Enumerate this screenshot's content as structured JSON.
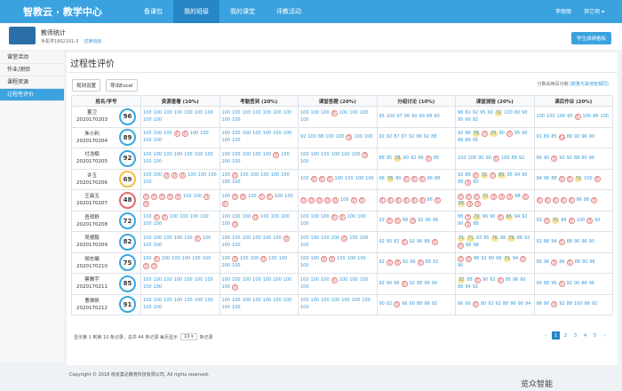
{
  "header": {
    "logo": "智教云 · 教学中心",
    "nav": [
      "备课包",
      "我的班级",
      "我的课堂",
      "评教活动"
    ],
    "active_nav": 1,
    "user": "李丽丽",
    "menu": "其它项"
  },
  "course": {
    "title": "教师统计",
    "class": "手机学1802101-3",
    "switch": "切换班级",
    "button": "学生成绩看板"
  },
  "sidebar": {
    "items": [
      "课堂活动",
      "作业/测验",
      "课程资源",
      "过程性评价"
    ],
    "active": 3
  },
  "page": {
    "title": "过程性评价",
    "buttons": [
      "规则设置",
      "导出Excel"
    ],
    "note": "分数采用百分制",
    "note_link": "(数量与其他班相同)"
  },
  "table": {
    "columns": [
      "姓名/学号",
      "资源查看 (10%)",
      "考勤签到 (20%)",
      "课堂答题 (20%)",
      "分组讨论 (10%)",
      "课堂测验 (20%)",
      "课后作业 (20%)"
    ],
    "rows": [
      {
        "name": "董卫",
        "id": "2020170203",
        "total": 96,
        "scores": [
          [
            100,
            100,
            100,
            100,
            100,
            100,
            100,
            100,
            100
          ],
          [
            100,
            100,
            100,
            100,
            100,
            100,
            100,
            100,
            100
          ],
          [
            100,
            100,
            100,
            0,
            100,
            100,
            100,
            100
          ],
          [
            95,
            100,
            97,
            96,
            90,
            90,
            88,
            90
          ],
          [
            98,
            82,
            92,
            95,
            90,
            72,
            100,
            80,
            90,
            95,
            90,
            92
          ],
          [
            100,
            100,
            100,
            95,
            0,
            100,
            88,
            100
          ]
        ]
      },
      {
        "name": "朱小利",
        "id": "2020170204",
        "total": 89,
        "scores": [
          [
            100,
            100,
            100,
            0,
            0,
            100,
            100,
            100,
            100
          ],
          [
            100,
            100,
            100,
            100,
            100,
            100,
            100,
            100,
            100
          ],
          [
            92,
            100,
            88,
            100,
            100,
            0,
            100,
            100
          ],
          [
            92,
            92,
            87,
            87,
            92,
            96,
            92,
            88
          ],
          [
            92,
            96,
            78,
            0,
            75,
            90,
            0,
            95,
            90,
            88,
            86,
            95
          ],
          [
            91,
            89,
            85,
            52,
            88,
            92,
            96,
            90
          ]
        ]
      },
      {
        "name": "付浩楠",
        "id": "2020170205",
        "total": 92,
        "scores": [
          [
            100,
            100,
            100,
            100,
            100,
            100,
            100,
            100,
            100
          ],
          [
            100,
            100,
            100,
            100,
            100,
            0,
            100,
            100,
            100
          ],
          [
            100,
            100,
            100,
            100,
            100,
            100,
            0,
            100
          ],
          [
            88,
            95,
            78,
            90,
            92,
            96,
            0,
            88
          ],
          [
            100,
            100,
            90,
            90,
            0,
            100,
            88,
            92
          ],
          [
            96,
            90,
            0,
            90,
            92,
            88,
            90,
            96
          ]
        ]
      },
      {
        "name": "许玉",
        "id": "2020170206",
        "total": 69,
        "scores": [
          [
            100,
            100,
            0,
            0,
            0,
            100,
            100,
            100,
            100
          ],
          [
            100,
            0,
            100,
            100,
            100,
            100,
            100,
            100,
            100
          ],
          [
            100,
            0,
            0,
            0,
            100,
            100,
            100,
            100
          ],
          [
            96,
            78,
            80,
            0,
            0,
            0,
            96,
            88
          ],
          [
            92,
            88,
            0,
            72,
            0,
            65,
            95,
            94,
            90,
            88,
            0,
            80
          ],
          [
            94,
            96,
            88,
            0,
            0,
            72,
            100,
            0
          ]
        ]
      },
      {
        "name": "王晨玉",
        "id": "2020170207",
        "total": 48,
        "scores": [
          [
            0,
            0,
            0,
            0,
            0,
            100,
            100,
            0,
            0
          ],
          [
            100,
            0,
            0,
            100,
            0,
            0,
            100,
            100,
            0
          ],
          [
            0,
            0,
            0,
            0,
            0,
            100,
            0,
            0
          ],
          [
            0,
            0,
            0,
            0,
            0,
            0,
            96,
            0
          ],
          [
            0,
            0,
            0,
            72,
            0,
            0,
            0,
            88,
            0,
            65,
            0,
            0
          ],
          [
            0,
            0,
            0,
            0,
            0,
            96,
            88,
            0
          ]
        ]
      },
      {
        "name": "吾郑舒",
        "id": "2020170208",
        "total": 72,
        "scores": [
          [
            100,
            0,
            0,
            100,
            100,
            100,
            100,
            100,
            100
          ],
          [
            100,
            100,
            100,
            0,
            100,
            100,
            100,
            100,
            0
          ],
          [
            100,
            100,
            100,
            0,
            0,
            100,
            100,
            100
          ],
          [
            92,
            0,
            0,
            88,
            0,
            92,
            90,
            96
          ],
          [
            88,
            0,
            72,
            96,
            90,
            0,
            65,
            94,
            92,
            90,
            0,
            88
          ],
          [
            92,
            0,
            70,
            88,
            0,
            100,
            0,
            90
          ]
        ]
      },
      {
        "name": "吴德毅",
        "id": "2020170209",
        "total": 82,
        "scores": [
          [
            100,
            100,
            100,
            100,
            100,
            0,
            100,
            100,
            100
          ],
          [
            100,
            100,
            100,
            100,
            100,
            100,
            0,
            100,
            100
          ],
          [
            100,
            100,
            100,
            100,
            0,
            100,
            100,
            100
          ],
          [
            92,
            90,
            82,
            0,
            92,
            96,
            88,
            0
          ],
          [
            71,
            71,
            93,
            95,
            76,
            88,
            79,
            88,
            92,
            0,
            88,
            98
          ],
          [
            92,
            88,
            94,
            0,
            88,
            90,
            96,
            90
          ]
        ]
      },
      {
        "name": "胡志编",
        "id": "2020170210",
        "total": 75,
        "scores": [
          [
            100,
            0,
            100,
            100,
            100,
            100,
            100,
            0,
            0
          ],
          [
            100,
            0,
            100,
            100,
            0,
            100,
            100,
            100,
            100
          ],
          [
            100,
            100,
            0,
            0,
            100,
            100,
            100,
            100
          ],
          [
            92,
            0,
            0,
            92,
            96,
            0,
            88,
            92
          ],
          [
            0,
            0,
            88,
            92,
            80,
            96,
            71,
            94,
            0,
            90
          ],
          [
            90,
            96,
            0,
            86,
            0,
            88,
            90,
            98
          ]
        ]
      },
      {
        "name": "蔡雅宇",
        "id": "2020170211",
        "total": 85,
        "scores": [
          [
            100,
            100,
            100,
            100,
            100,
            100,
            100,
            100,
            100
          ],
          [
            100,
            100,
            100,
            100,
            100,
            100,
            100,
            100,
            0
          ],
          [
            100,
            100,
            100,
            0,
            100,
            100,
            100,
            100
          ],
          [
            92,
            90,
            96,
            0,
            92,
            88,
            96,
            90
          ],
          [
            72,
            88,
            0,
            90,
            92,
            0,
            95,
            96,
            90,
            88,
            94,
            92
          ],
          [
            90,
            88,
            96,
            0,
            92,
            90,
            88,
            96
          ]
        ]
      },
      {
        "name": "曹振帆",
        "id": "2020170212",
        "total": 91,
        "scores": [
          [
            100,
            100,
            100,
            100,
            100,
            100,
            100,
            100,
            100
          ],
          [
            100,
            100,
            100,
            100,
            100,
            100,
            100,
            100,
            100
          ],
          [
            100,
            100,
            100,
            100,
            100,
            100,
            100,
            100
          ],
          [
            90,
            92,
            0,
            96,
            90,
            88,
            96,
            92
          ],
          [
            96,
            90,
            0,
            90,
            92,
            92,
            80,
            96,
            90,
            94
          ],
          [
            96,
            90,
            0,
            92,
            88,
            100,
            96,
            92
          ]
        ]
      }
    ]
  },
  "footer": {
    "summary": "显示第 1 到第 10 条记录，总共 44 条记录 每页显示",
    "page_size": "10",
    "summary_end": "条记录",
    "pages": [
      1,
      2,
      3,
      4,
      5
    ],
    "active_page": 0,
    "copyright": "Copyright © 2018 南京莫必教育科技有限公司. All rights reserved.",
    "watermark": "览众智能"
  }
}
